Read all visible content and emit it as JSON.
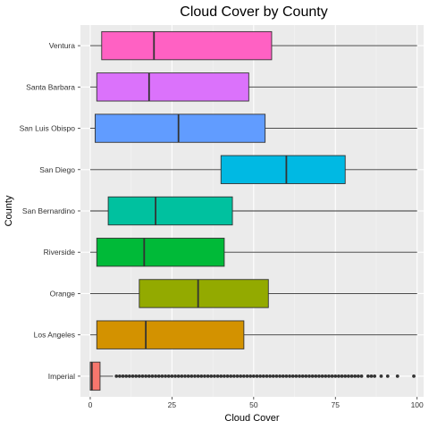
{
  "chart_data": {
    "type": "boxplot",
    "orientation": "horizontal",
    "title": "Cloud Cover by County",
    "xlabel": "Cloud Cover",
    "ylabel": "County",
    "xlim": [
      -3,
      102
    ],
    "x_ticks": [
      0,
      25,
      50,
      75,
      100
    ],
    "x_tick_labels": [
      "0",
      "25",
      "50",
      "75",
      "100"
    ],
    "grid": true,
    "legend": "none",
    "categories": [
      "Imperial",
      "Los Angeles",
      "Orange",
      "Riverside",
      "San Bernardino",
      "San Diego",
      "San Luis Obispo",
      "Santa Barbara",
      "Ventura"
    ],
    "series": [
      {
        "category": "Imperial",
        "min": 0,
        "q1": 0,
        "median": 0.5,
        "q3": 3,
        "max": 7,
        "color": "#F8766D",
        "outliers": [
          8,
          9,
          10,
          11,
          12,
          13,
          14,
          15,
          16,
          17,
          18,
          19,
          20,
          21,
          22,
          23,
          24,
          25,
          26,
          27,
          28,
          29,
          30,
          31,
          32,
          33,
          34,
          35,
          36,
          37,
          38,
          39,
          40,
          41,
          42,
          43,
          44,
          45,
          46,
          47,
          48,
          49,
          50,
          51,
          52,
          53,
          54,
          55,
          56,
          57,
          58,
          59,
          60,
          61,
          62,
          63,
          64,
          65,
          66,
          67,
          68,
          69,
          70,
          71,
          72,
          73,
          74,
          75,
          76,
          77,
          78,
          79,
          80,
          81,
          82,
          83,
          85,
          86,
          87,
          89,
          91,
          94,
          99
        ]
      },
      {
        "category": "Los Angeles",
        "min": 0,
        "q1": 2,
        "median": 17,
        "q3": 47,
        "max": 100,
        "color": "#D39200",
        "outliers": []
      },
      {
        "category": "Orange",
        "min": 0,
        "q1": 15,
        "median": 33,
        "q3": 54.5,
        "max": 100,
        "color": "#93AA00",
        "outliers": []
      },
      {
        "category": "Riverside",
        "min": 0,
        "q1": 2,
        "median": 16.5,
        "q3": 41,
        "max": 100,
        "color": "#00BA38",
        "outliers": []
      },
      {
        "category": "San Bernardino",
        "min": 0,
        "q1": 5.5,
        "median": 20,
        "q3": 43.5,
        "max": 100,
        "color": "#00C19F",
        "outliers": []
      },
      {
        "category": "San Diego",
        "min": 0,
        "q1": 40,
        "median": 60,
        "q3": 78,
        "max": 100,
        "color": "#00B9E3",
        "outliers": []
      },
      {
        "category": "San Luis Obispo",
        "min": 0,
        "q1": 1.5,
        "median": 27,
        "q3": 53.5,
        "max": 100,
        "color": "#619CFF",
        "outliers": []
      },
      {
        "category": "Santa Barbara",
        "min": 0,
        "q1": 2,
        "median": 18,
        "q3": 48.5,
        "max": 100,
        "color": "#DB72FB",
        "outliers": []
      },
      {
        "category": "Ventura",
        "min": 0,
        "q1": 3.5,
        "median": 19.5,
        "q3": 55.5,
        "max": 100,
        "color": "#FF61C3",
        "outliers": []
      }
    ],
    "colors": {
      "panel": "#EBEBEB",
      "grid_major": "#FFFFFF",
      "outline": "#333333"
    }
  }
}
